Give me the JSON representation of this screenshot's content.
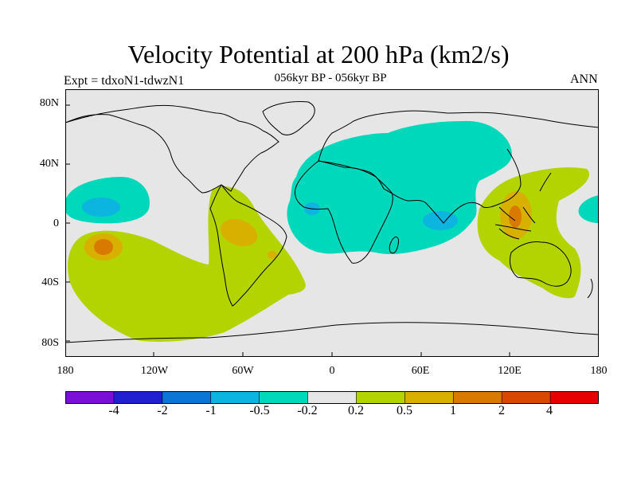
{
  "title": "Velocity Potential at 200 hPa (km2/s)",
  "subtitle": "056kyr BP - 056kyr BP",
  "experiment": "Expt = tdxoN1-tdwzN1",
  "season": "ANN",
  "map": {
    "projection": "cylindrical-equidistant",
    "lon_range": [
      -180,
      180
    ],
    "lat_range": [
      -90,
      90
    ],
    "background_color": "#e6e6e6",
    "coastline_color": "#000000",
    "lat_tick_labels": [
      "80N",
      "40N",
      "0",
      "40S",
      "80S"
    ],
    "lon_tick_labels": [
      "180",
      "120W",
      "60W",
      "0",
      "60E",
      "120E",
      "180"
    ]
  },
  "colorbar": {
    "colors": [
      "#7a10d8",
      "#2020d0",
      "#0b76d6",
      "#0cb4e0",
      "#00d8bc",
      "#e6e6e6",
      "#b4d400",
      "#d8b000",
      "#d87a00",
      "#d84800",
      "#e80000"
    ],
    "tick_labels": [
      "-4",
      "-2",
      "-1",
      "-0.5",
      "-0.2",
      "0.2",
      "0.5",
      "1",
      "2",
      "4"
    ]
  }
}
